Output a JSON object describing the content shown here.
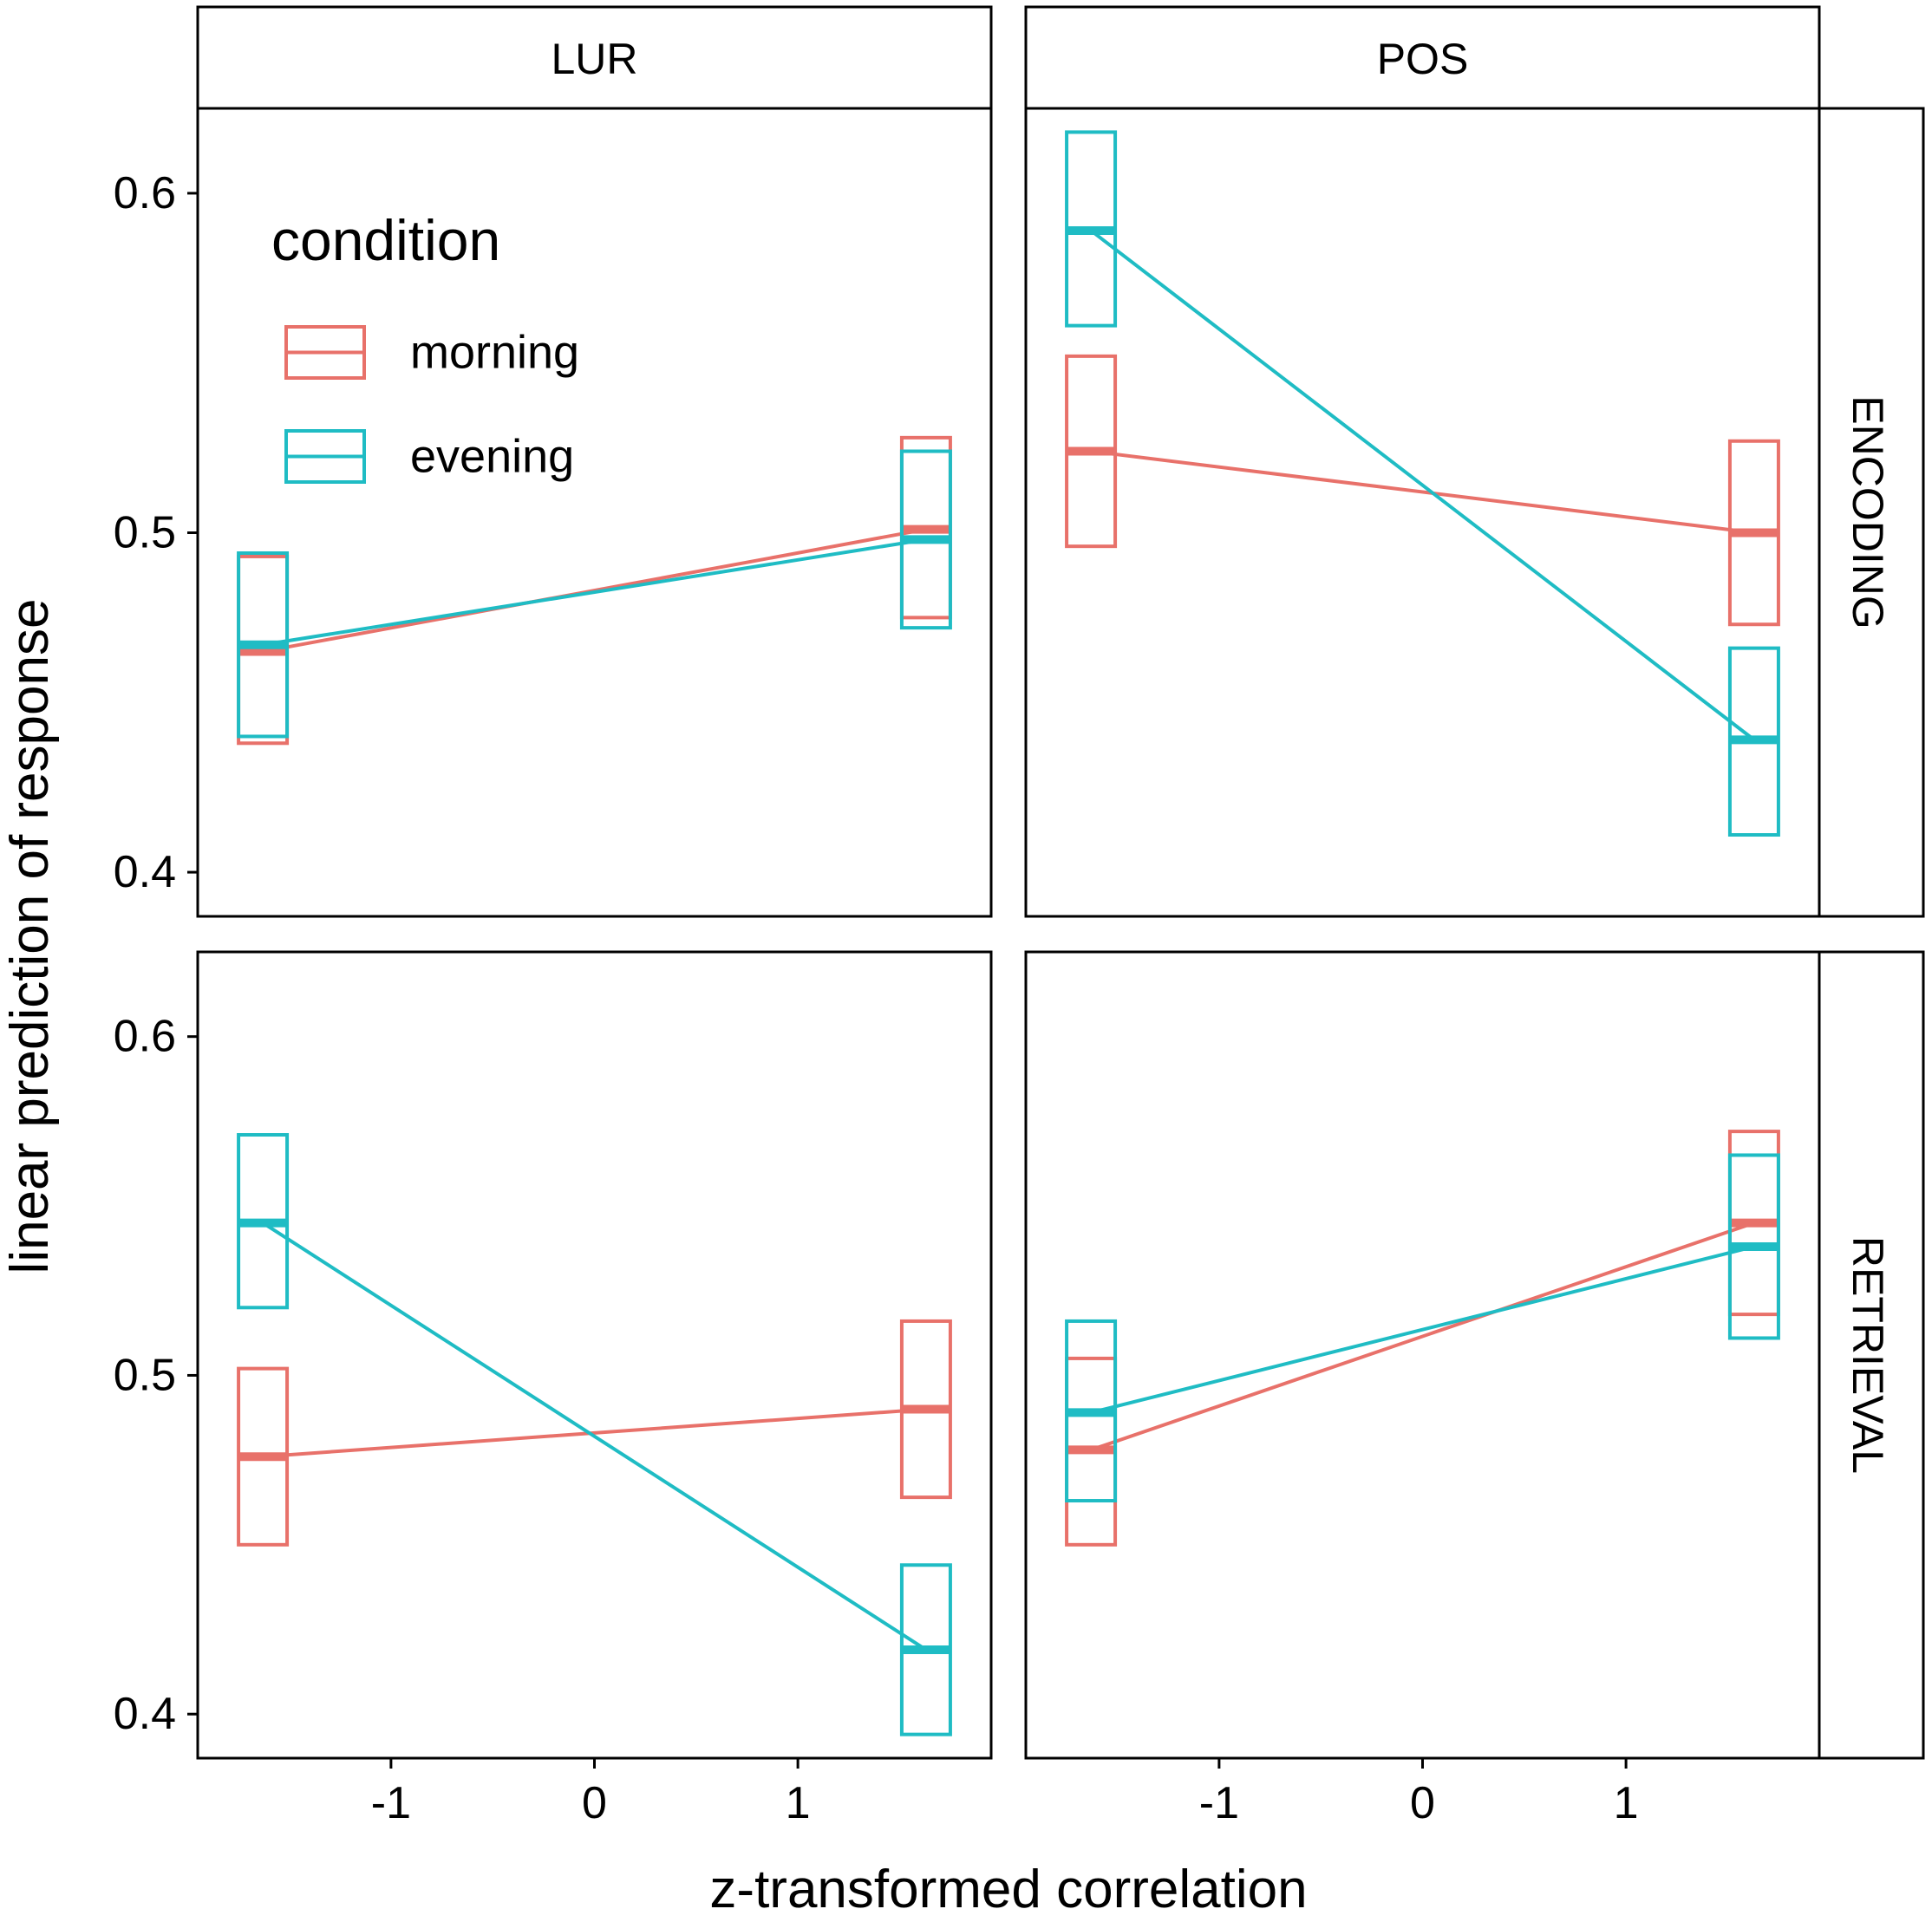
{
  "chart_data": {
    "type": "line",
    "xlabel": "z-transformed correlation",
    "ylabel": "linear prediction of response",
    "xlim": [
      -1.95,
      1.95
    ],
    "ylim": [
      0.387,
      0.625
    ],
    "xticks": [
      -1,
      0,
      1
    ],
    "xtick_labels": [
      "-1",
      "0",
      "1"
    ],
    "yticks": [
      0.4,
      0.5,
      0.6
    ],
    "ytick_labels": [
      "0.4",
      "0.5",
      "0.6"
    ],
    "columns": [
      "LUR",
      "POS"
    ],
    "rows": [
      "ENCODING",
      "RETRIEVAL"
    ],
    "legend": {
      "title": "condition",
      "entries": [
        "morning",
        "evening"
      ],
      "placement": "top-left"
    },
    "colors": {
      "morning": "#E8716A",
      "evening": "#1FBCC4"
    },
    "x_points": [
      -1.63,
      1.63
    ],
    "panels": [
      {
        "column": "LUR",
        "row": "ENCODING",
        "series": [
          {
            "name": "morning",
            "fit": [
              0.465,
              0.501
            ],
            "lower": [
              0.438,
              0.475
            ],
            "upper": [
              0.493,
              0.528
            ]
          },
          {
            "name": "evening",
            "fit": [
              0.467,
              0.498
            ],
            "lower": [
              0.44,
              0.472
            ],
            "upper": [
              0.494,
              0.524
            ]
          }
        ]
      },
      {
        "column": "POS",
        "row": "ENCODING",
        "series": [
          {
            "name": "morning",
            "fit": [
              0.524,
              0.5
            ],
            "lower": [
              0.496,
              0.473
            ],
            "upper": [
              0.552,
              0.527
            ]
          },
          {
            "name": "evening",
            "fit": [
              0.589,
              0.439
            ],
            "lower": [
              0.561,
              0.411
            ],
            "upper": [
              0.618,
              0.466
            ]
          }
        ]
      },
      {
        "column": "LUR",
        "row": "RETRIEVAL",
        "series": [
          {
            "name": "morning",
            "fit": [
              0.476,
              0.49
            ],
            "lower": [
              0.45,
              0.464
            ],
            "upper": [
              0.502,
              0.516
            ]
          },
          {
            "name": "evening",
            "fit": [
              0.545,
              0.419
            ],
            "lower": [
              0.52,
              0.394
            ],
            "upper": [
              0.571,
              0.444
            ]
          }
        ]
      },
      {
        "column": "POS",
        "row": "RETRIEVAL",
        "series": [
          {
            "name": "morning",
            "fit": [
              0.478,
              0.545
            ],
            "lower": [
              0.45,
              0.518
            ],
            "upper": [
              0.505,
              0.572
            ]
          },
          {
            "name": "evening",
            "fit": [
              0.489,
              0.538
            ],
            "lower": [
              0.463,
              0.511
            ],
            "upper": [
              0.516,
              0.565
            ]
          }
        ]
      }
    ]
  }
}
